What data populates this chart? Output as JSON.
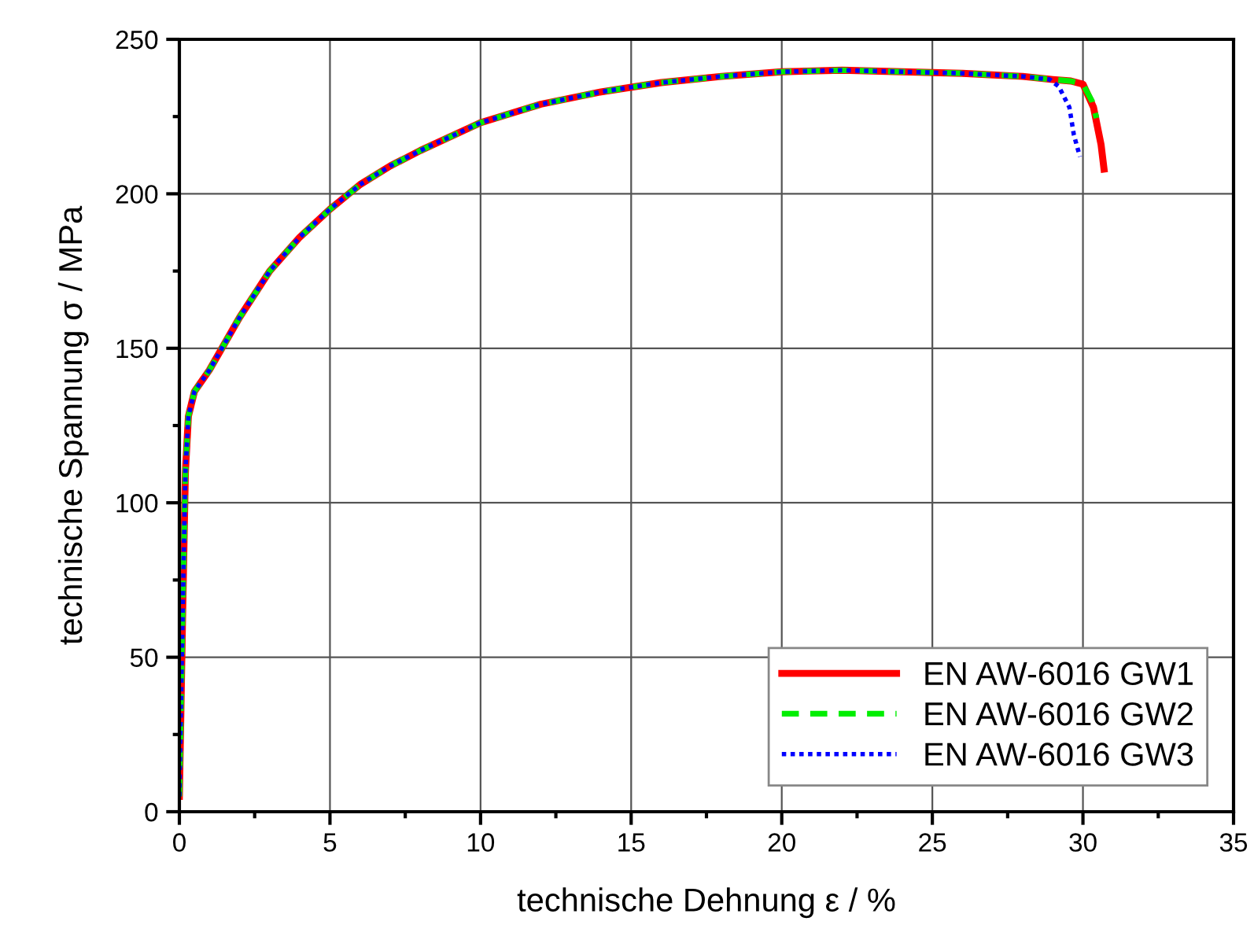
{
  "chart_data": {
    "type": "line",
    "xlabel": "technische Dehnung ε / %",
    "ylabel": "technische Spannung σ / MPa",
    "xlim": [
      0,
      35
    ],
    "xticks": [
      0,
      5,
      10,
      15,
      20,
      25,
      30,
      35
    ],
    "ylim": [
      0,
      250
    ],
    "yticks": [
      0,
      50,
      100,
      150,
      200,
      250
    ],
    "grid": true,
    "legend": "bottom right",
    "series": [
      {
        "name": "EN AW-6016 GW1",
        "color": "#ff0000",
        "line_style": "solid",
        "x": [
          0,
          0.1,
          0.2,
          0.3,
          0.5,
          1,
          2,
          3,
          4,
          5,
          6,
          7,
          8,
          10,
          12,
          14,
          16,
          18,
          20,
          22,
          24,
          26,
          28,
          29,
          29.6,
          30,
          30.35,
          30.6,
          30.7
        ],
        "values": [
          5,
          60,
          110,
          128,
          136,
          143,
          160,
          175,
          186,
          195,
          203,
          209,
          214,
          223,
          229,
          233,
          236,
          238,
          239.5,
          240,
          239.5,
          239,
          238,
          237,
          236.5,
          235.5,
          228,
          216,
          208
        ]
      },
      {
        "name": "EN AW-6016 GW2",
        "color": "#00ee00",
        "line_style": "dashed",
        "x": [
          0,
          0.1,
          0.2,
          0.3,
          0.5,
          1,
          2,
          3,
          4,
          5,
          6,
          7,
          8,
          10,
          12,
          14,
          16,
          18,
          20,
          22,
          24,
          26,
          28,
          29,
          29.6,
          30,
          30.3,
          30.45
        ],
        "values": [
          5,
          60,
          110,
          128,
          136,
          143,
          160,
          175,
          186,
          195,
          203,
          209,
          214,
          223,
          229,
          233,
          236,
          238,
          239.5,
          240,
          239.5,
          239,
          238,
          237,
          236.5,
          235.5,
          230,
          224.5
        ]
      },
      {
        "name": "EN AW-6016 GW3",
        "color": "#0000ff",
        "line_style": "dotted",
        "x": [
          0,
          0.1,
          0.2,
          0.3,
          0.5,
          1,
          2,
          3,
          4,
          5,
          6,
          7,
          8,
          10,
          12,
          14,
          16,
          18,
          20,
          22,
          24,
          26,
          28,
          28.9,
          29.2,
          29.55,
          29.7,
          29.9
        ],
        "values": [
          5,
          60,
          110,
          128,
          136,
          143,
          160,
          175,
          186,
          195,
          203,
          209,
          214,
          223,
          229,
          233,
          236,
          238,
          239.5,
          240,
          239.5,
          239,
          238,
          237,
          234.7,
          228,
          219,
          212
        ]
      }
    ]
  }
}
